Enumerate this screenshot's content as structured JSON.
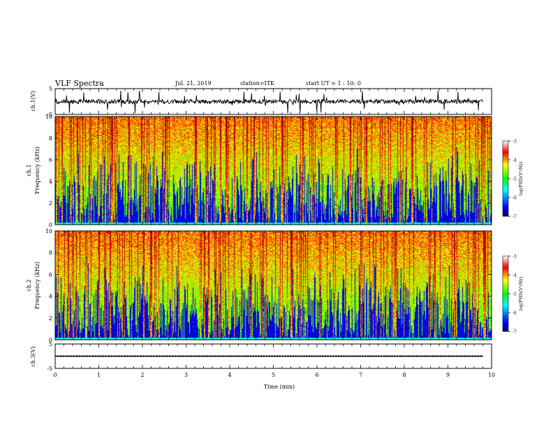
{
  "header": {
    "title": "VLF Spectra",
    "date": "Jul. 21, 2019",
    "station": "station=ITK",
    "start": "start UT =  1 : 10: 0"
  },
  "chart_data": [
    {
      "type": "line",
      "panel": "ch1-waveform",
      "ylabel": "ch.1(V)",
      "ylim": [
        -5,
        5
      ],
      "yticks": [
        "5",
        "-5"
      ],
      "xlim": [
        0,
        10
      ]
    },
    {
      "type": "heatmap",
      "panel": "ch1-spectrogram",
      "ylabel_top": "ch.1",
      "ylabel": "Frequency (kHz)",
      "ylim": [
        0,
        10
      ],
      "yticks": [
        "0",
        "2",
        "4",
        "6",
        "8",
        "10"
      ],
      "xlim": [
        0,
        10
      ],
      "colorbar": {
        "range": [
          -7,
          -3
        ],
        "ticks": [
          "-3",
          "-4",
          "-5",
          "-6",
          "-7"
        ],
        "label": "log(PSD)(V²/Hz)"
      }
    },
    {
      "type": "heatmap",
      "panel": "ch2-spectrogram",
      "ylabel_top": "ch.2",
      "ylabel": "Frequency (kHz)",
      "ylim": [
        0,
        10
      ],
      "yticks": [
        "0",
        "2",
        "4",
        "6",
        "8",
        "10"
      ],
      "xlim": [
        0,
        10
      ],
      "colorbar": {
        "range": [
          -7,
          -3
        ],
        "ticks": [
          "-3",
          "-4",
          "-5",
          "-6",
          "-7"
        ],
        "label": "log(PSD)(V²/Hz)"
      }
    },
    {
      "type": "line",
      "panel": "ch3-waveform",
      "ylabel": "ch.3(V)",
      "ylim": [
        -5,
        5
      ],
      "yticks": [
        "5",
        "-5"
      ],
      "xlim": [
        0,
        10
      ],
      "xlabel": "Time (min)",
      "xticks": [
        "0",
        "1",
        "2",
        "3",
        "4",
        "5",
        "6",
        "7",
        "8",
        "9",
        "10"
      ]
    }
  ],
  "colors": {
    "colormap": [
      "#000080",
      "#0000ff",
      "#00ffff",
      "#00ff00",
      "#ffff00",
      "#ff0000",
      "#800000"
    ]
  }
}
